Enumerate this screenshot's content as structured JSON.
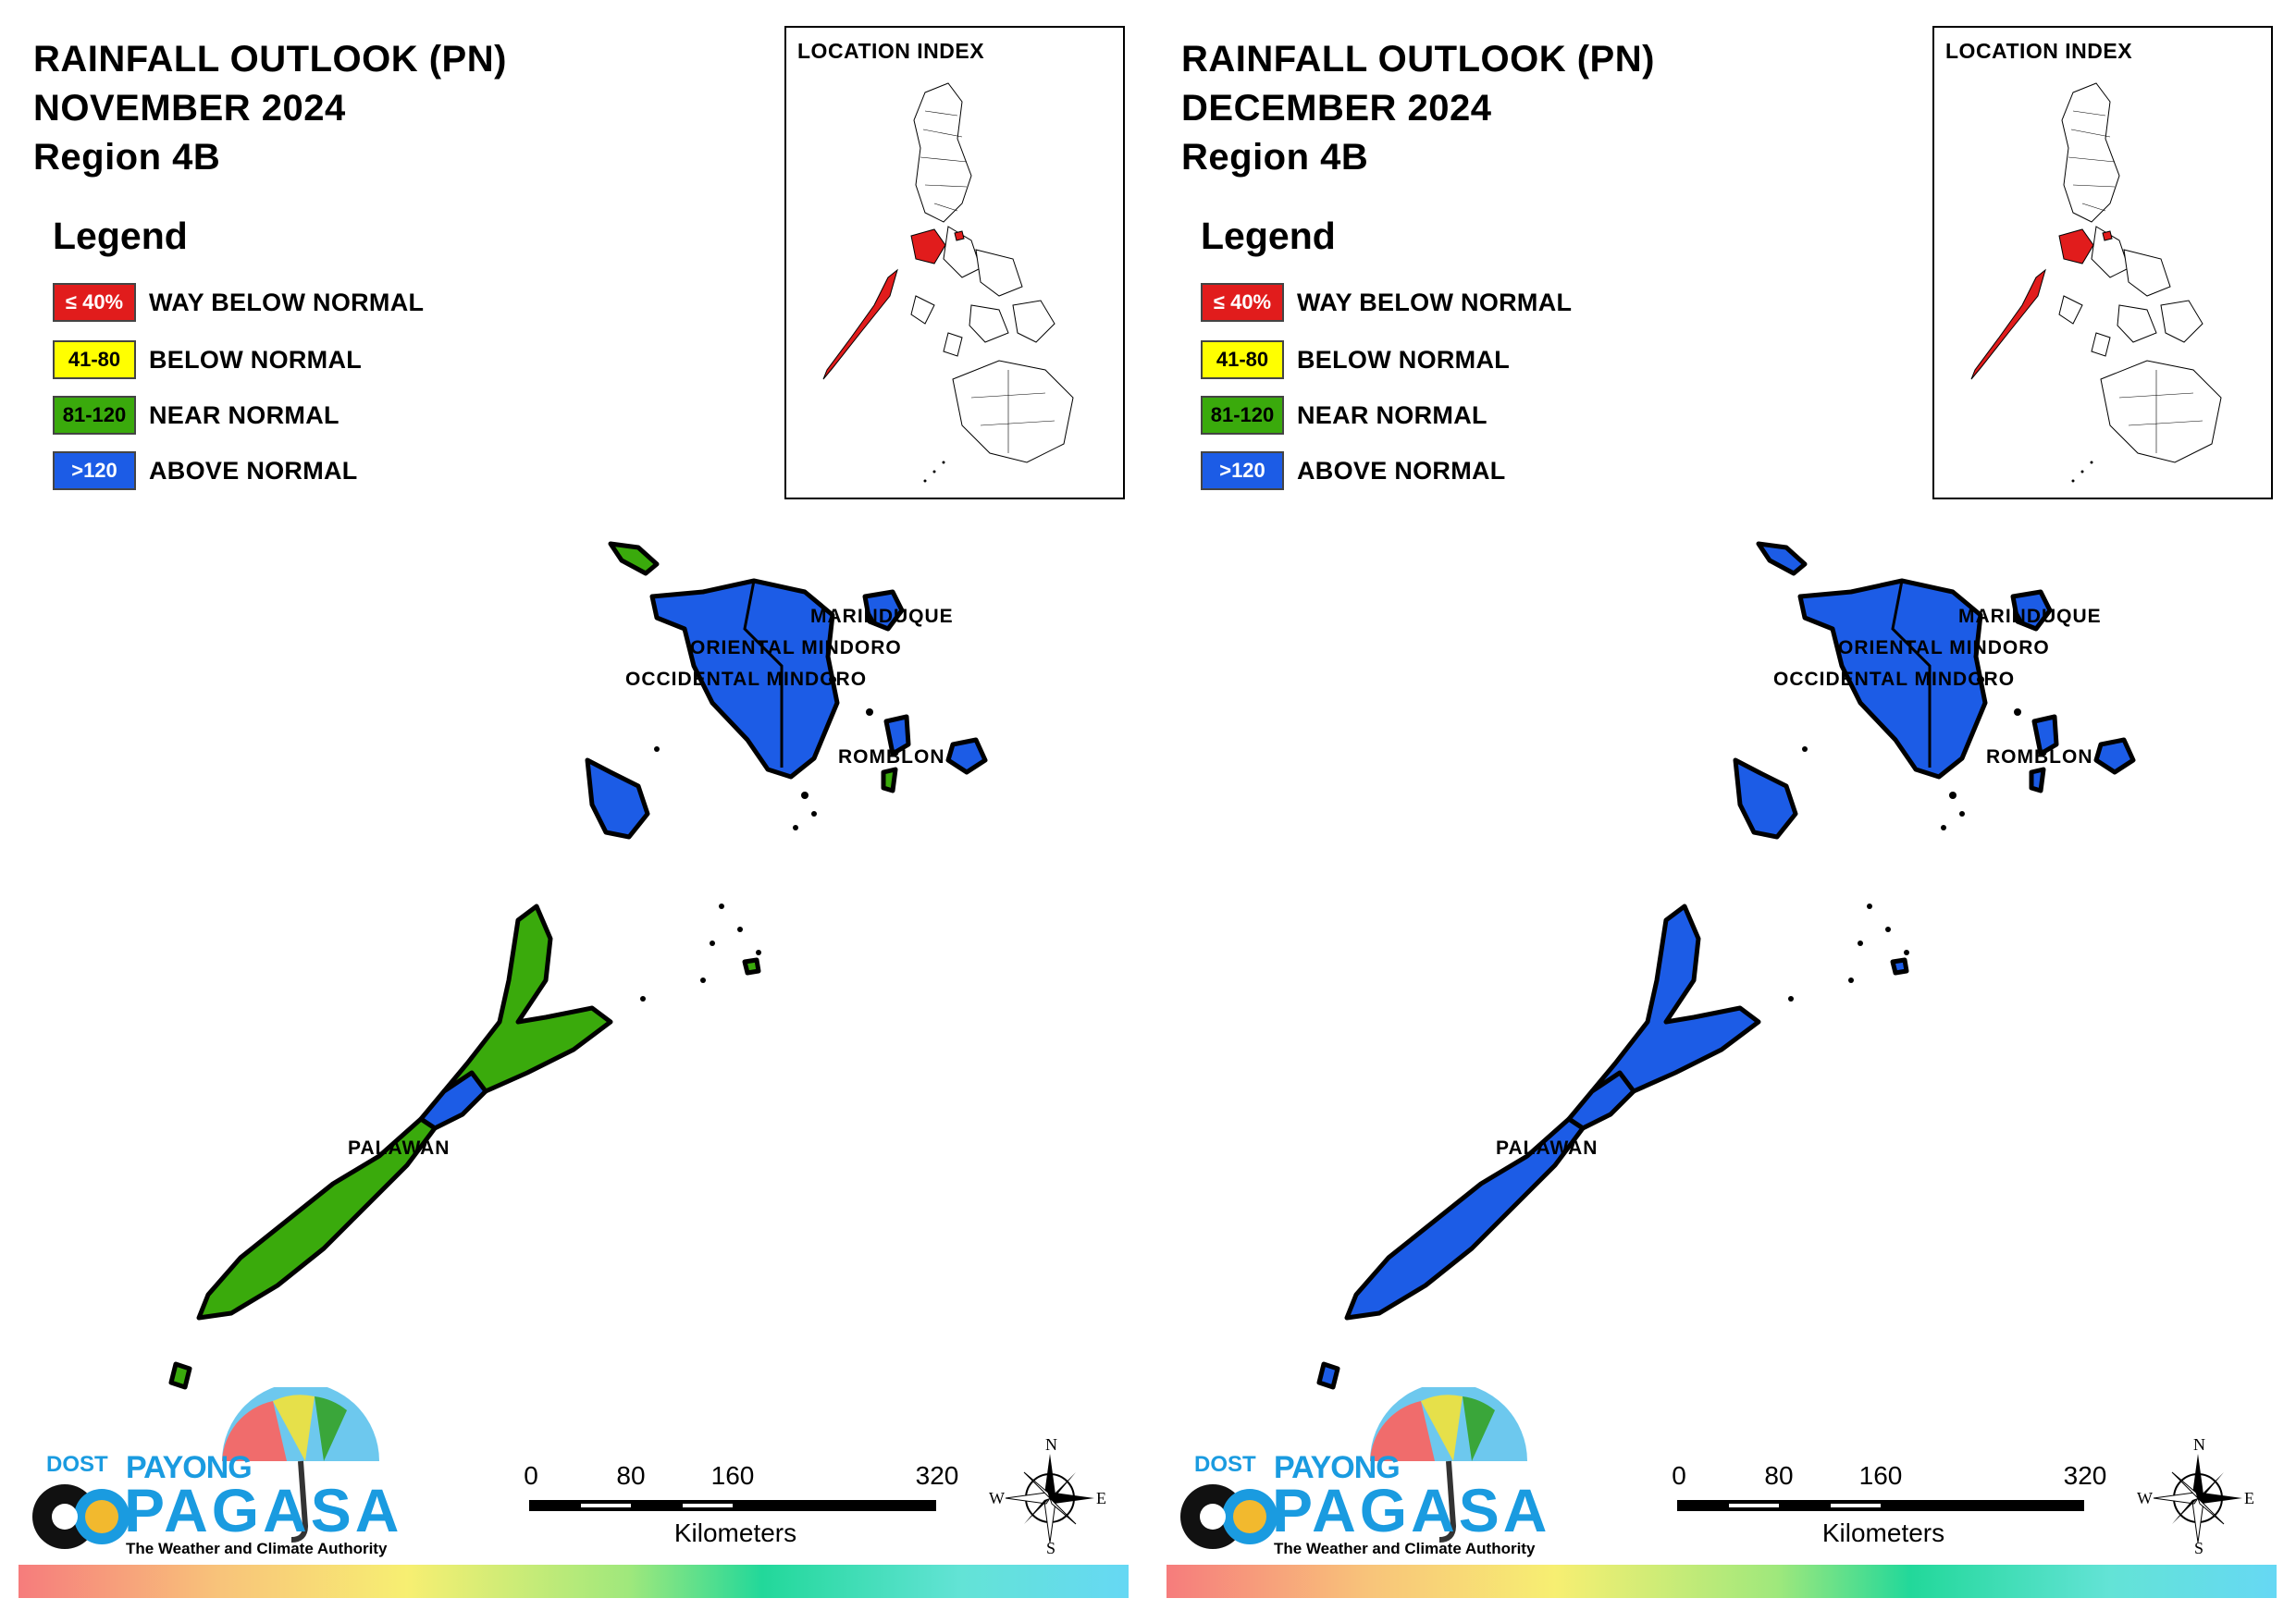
{
  "panels": [
    {
      "title_line1": "RAINFALL OUTLOOK (PN)",
      "title_line2": "NOVEMBER 2024",
      "title_line3": "Region 4B",
      "legend_title": "Legend",
      "legend": [
        {
          "range": "≤ 40%",
          "label": "WAY BELOW NORMAL",
          "color": "#e11c1c",
          "text_color": "#ffffff"
        },
        {
          "range": "41-80",
          "label": "BELOW NORMAL",
          "color": "#ffff00",
          "text_color": "#000000"
        },
        {
          "range": "81-120",
          "label": "NEAR NORMAL",
          "color": "#3aaa0c",
          "text_color": "#000000"
        },
        {
          "range": ">120",
          "label": "ABOVE NORMAL",
          "color": "#1c5ce6",
          "text_color": "#ffffff"
        }
      ],
      "location_index_title": "LOCATION INDEX",
      "provinces": {
        "marinduque": "MARINDUQUE",
        "oriental_mindoro": "ORIENTAL MINDORO",
        "occidental_mindoro": "OCCIDENTAL MINDORO",
        "romblon": "ROMBLON",
        "palawan": "PALAWAN"
      },
      "province_classes": {
        "marinduque": "ABOVE NORMAL",
        "oriental_mindoro": "ABOVE NORMAL",
        "occidental_mindoro": "ABOVE NORMAL",
        "romblon": "ABOVE NORMAL",
        "palawan_north": "ABOVE NORMAL",
        "palawan_south": "NEAR NORMAL"
      },
      "scale": {
        "ticks": [
          "0",
          "80",
          "160",
          "320"
        ],
        "unit": "Kilometers"
      },
      "compass": {
        "n": "N",
        "s": "S",
        "e": "E",
        "w": "W"
      },
      "logo": {
        "dost": "DOST",
        "payong": "PAYONG",
        "pagasa": "PAGASA",
        "tagline": "The Weather and Climate Authority"
      }
    },
    {
      "title_line1": "RAINFALL OUTLOOK (PN)",
      "title_line2": "DECEMBER 2024",
      "title_line3": "Region 4B",
      "legend_title": "Legend",
      "legend": [
        {
          "range": "≤ 40%",
          "label": "WAY BELOW NORMAL",
          "color": "#e11c1c",
          "text_color": "#ffffff"
        },
        {
          "range": "41-80",
          "label": "BELOW NORMAL",
          "color": "#ffff00",
          "text_color": "#000000"
        },
        {
          "range": "81-120",
          "label": "NEAR NORMAL",
          "color": "#3aaa0c",
          "text_color": "#000000"
        },
        {
          "range": ">120",
          "label": "ABOVE NORMAL",
          "color": "#1c5ce6",
          "text_color": "#ffffff"
        }
      ],
      "location_index_title": "LOCATION INDEX",
      "provinces": {
        "marinduque": "MARINDUQUE",
        "oriental_mindoro": "ORIENTAL MINDORO",
        "occidental_mindoro": "OCCIDENTAL MINDORO",
        "romblon": "ROMBLON",
        "palawan": "PALAWAN"
      },
      "province_classes": {
        "marinduque": "ABOVE NORMAL",
        "oriental_mindoro": "ABOVE NORMAL",
        "occidental_mindoro": "ABOVE NORMAL",
        "romblon": "ABOVE NORMAL",
        "palawan_north": "ABOVE NORMAL",
        "palawan_south": "ABOVE NORMAL"
      },
      "scale": {
        "ticks": [
          "0",
          "80",
          "160",
          "320"
        ],
        "unit": "Kilometers"
      },
      "compass": {
        "n": "N",
        "s": "S",
        "e": "E",
        "w": "W"
      },
      "logo": {
        "dost": "DOST",
        "payong": "PAYONG",
        "pagasa": "PAGASA",
        "tagline": "The Weather and Climate Authority"
      }
    }
  ]
}
